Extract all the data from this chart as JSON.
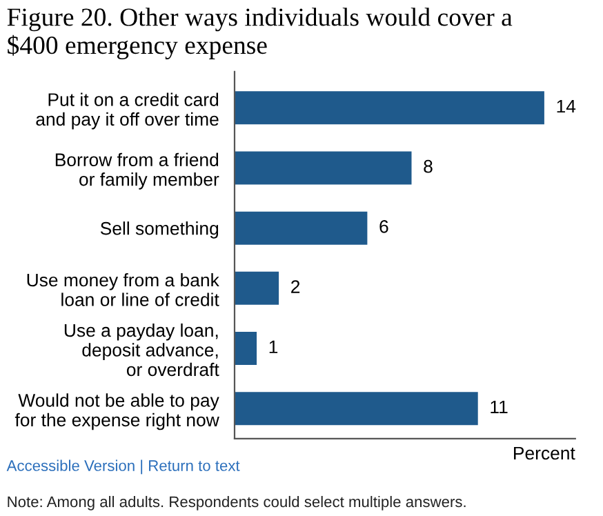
{
  "chart_data": {
    "type": "bar",
    "orientation": "horizontal",
    "title": "Figure 20. Other ways individuals would cover a\n$400 emergency expense",
    "categories": [
      "Put it on a credit card\nand pay it off over time",
      "Borrow from a friend\nor family member",
      "Sell something",
      "Use money from a bank\nloan or line of credit",
      "Use a payday loan,\ndeposit advance,\nor overdraft",
      "Would not be able to pay\nfor the expense right now"
    ],
    "values": [
      14,
      8,
      6,
      2,
      1,
      11
    ],
    "color": "#1f5a8c",
    "xlim": [
      0,
      15.4
    ],
    "xlabel": "Percent",
    "data_labels": true,
    "grid": false,
    "legend": false,
    "annotations": [
      "Accessible Version | Return to text",
      "Note: Among all adults. Respondents could select multiple answers."
    ]
  }
}
